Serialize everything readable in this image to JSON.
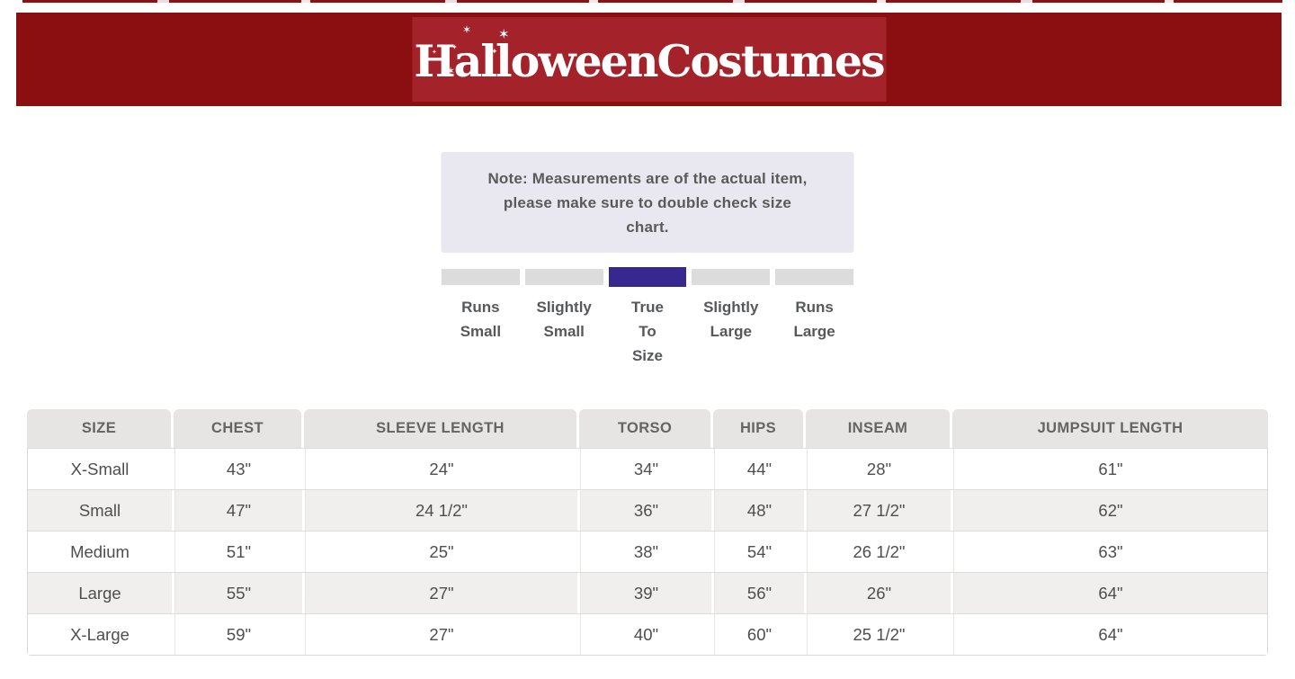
{
  "header": {
    "brand": "HalloweenCostumes",
    "banner_color": "#8b0e10",
    "logo_box_color": "#a4222a",
    "stars": [
      "✶",
      "✦",
      "✶",
      "✦",
      "✶",
      "✦"
    ]
  },
  "note": {
    "text": "Note: Measurements are of the actual item,\nplease make sure to double check size\nchart.",
    "bg_color": "#e9e8f1"
  },
  "fit_scale": {
    "selected_index": 2,
    "selected_color": "#37288f",
    "segment_color": "#dcdcdc",
    "options": [
      {
        "label": "Runs\nSmall"
      },
      {
        "label": "Slightly\nSmall"
      },
      {
        "label": "True\nTo\nSize"
      },
      {
        "label": "Slightly\nLarge"
      },
      {
        "label": "Runs\nLarge"
      }
    ]
  },
  "size_table": {
    "columns": [
      "SIZE",
      "CHEST",
      "SLEEVE LENGTH",
      "TORSO",
      "HIPS",
      "INSEAM",
      "JUMPSUIT LENGTH"
    ],
    "rows": [
      [
        "X-Small",
        "43\"",
        "24\"",
        "34\"",
        "44\"",
        "28\"",
        "61\""
      ],
      [
        "Small",
        "47\"",
        "24 1/2\"",
        "36\"",
        "48\"",
        "27 1/2\"",
        "62\""
      ],
      [
        "Medium",
        "51\"",
        "25\"",
        "38\"",
        "54\"",
        "26 1/2\"",
        "63\""
      ],
      [
        "Large",
        "55\"",
        "27\"",
        "39\"",
        "56\"",
        "26\"",
        "64\""
      ],
      [
        "X-Large",
        "59\"",
        "27\"",
        "40\"",
        "60\"",
        "25 1/2\"",
        "64\""
      ]
    ]
  }
}
